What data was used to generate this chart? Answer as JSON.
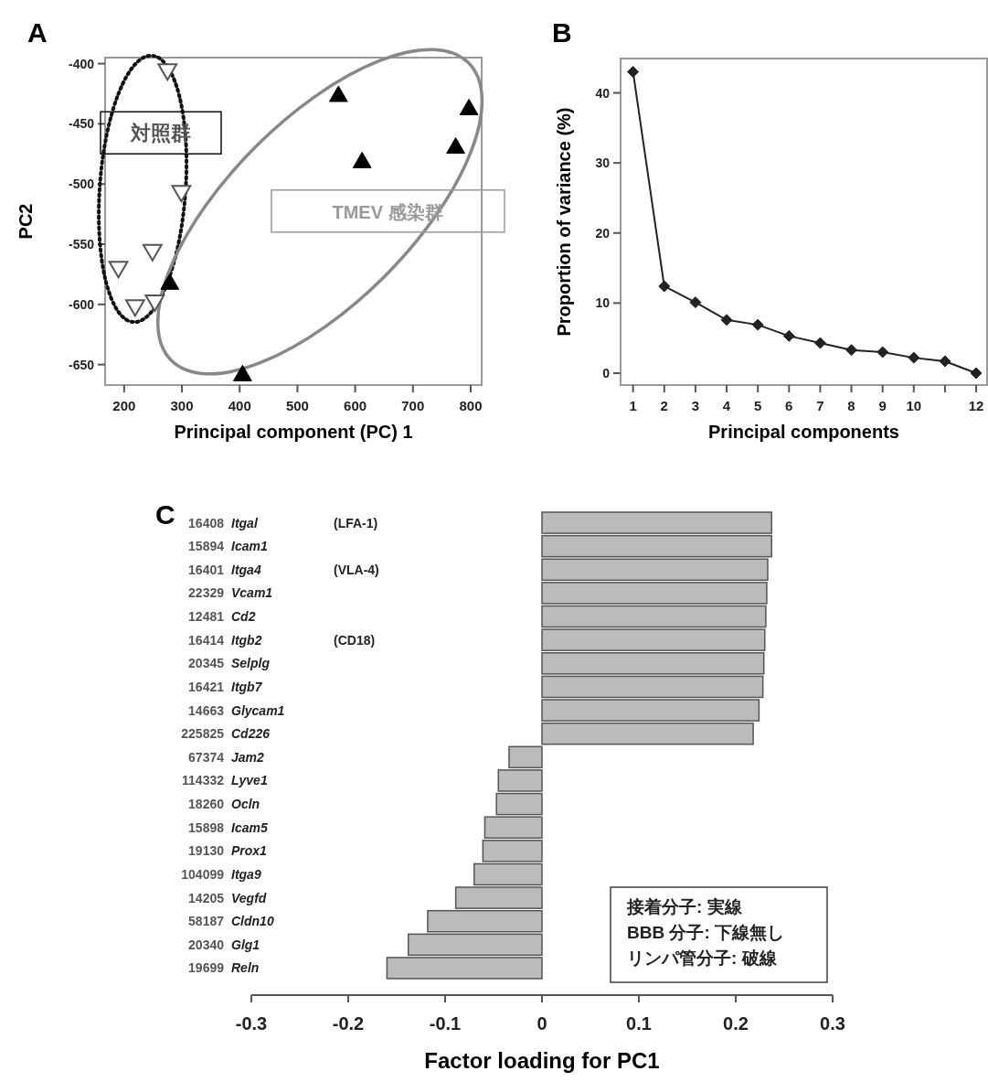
{
  "chart_data": [
    {
      "type": "scatter",
      "title": "A",
      "xlabel": "Principal component (PC) 1",
      "ylabel": "PC2",
      "xlim": [
        167,
        819
      ],
      "ylim": [
        -667,
        -395
      ],
      "xticks": [
        200,
        300,
        400,
        500,
        600,
        700,
        800
      ],
      "yticks": [
        -400,
        -450,
        -500,
        -550,
        -600,
        -650
      ],
      "series": [
        {
          "name": "対照群",
          "color": "#555555",
          "marker": "triangle-down",
          "x": [
            275,
            299,
            249,
            190,
            219,
            253
          ],
          "values": [
            -407,
            -508,
            -557,
            -571,
            -603,
            -599
          ]
        },
        {
          "name": "TMEV 感染群",
          "color": "#000000",
          "marker": "triangle",
          "x": [
            571,
            797,
            774,
            612,
            279,
            405
          ],
          "values": [
            -425,
            -436,
            -468,
            -480,
            -581,
            -657
          ]
        }
      ]
    },
    {
      "type": "line",
      "title": "B",
      "xlabel": "Principal components",
      "ylabel": "Proportion of variance (%)",
      "xlim": [
        0.6,
        12.35
      ],
      "ylim": [
        -1.7,
        44.9
      ],
      "xticks": [
        1,
        2,
        3,
        4,
        5,
        6,
        7,
        8,
        9,
        10,
        {
          "value": 11,
          "label": null
        },
        12
      ],
      "yticks": [
        0,
        10,
        20,
        30,
        40
      ],
      "marker": "diamond",
      "line_style": "solid",
      "series": [
        {
          "color": "#222222",
          "x": [
            1,
            2,
            3,
            4,
            5,
            6,
            7,
            8,
            9,
            10,
            11,
            12
          ],
          "values": [
            43.0,
            12.4,
            10.1,
            7.6,
            6.9,
            5.3,
            4.3,
            3.3,
            3.0,
            2.2,
            1.7,
            0
          ]
        }
      ]
    },
    {
      "type": "bar",
      "orientation": "horizontal",
      "title": "C",
      "xlabel": "Factor loading for PC1",
      "xlim": [
        -0.3,
        0.3
      ],
      "xticks": [
        -0.3,
        -0.2,
        -0.1,
        0.0,
        0.1,
        0.2,
        0.3
      ],
      "categories": [
        "16408 Itgal (LFA-1)",
        "15894 Icam1",
        "16401 Itga4 (VLA-4)",
        "22329 Vcam1",
        "12481 Cd2",
        "16414 Itgb2 (CD18)",
        "20345 Selplg",
        "16421 Itgb7",
        "14663 Glycam1",
        "225825 Cd226",
        "67374 Jam2",
        "114332 Lyve1",
        "18260 Ocln",
        "15898 Icam5",
        "19130 Prox1",
        "104099 Itga9",
        "14205 Vegfd",
        "58187 Cldn10",
        "20340 Glg1",
        "19699 Reln"
      ],
      "color": "#bbbbbb",
      "values": [
        0.237,
        0.237,
        0.233,
        0.232,
        0.231,
        0.23,
        0.229,
        0.228,
        0.224,
        0.218,
        -0.034,
        -0.045,
        -0.047,
        -0.059,
        -0.061,
        -0.07,
        -0.089,
        -0.118,
        -0.138,
        -0.16
      ],
      "annotations": [
        "接着分子: 実線",
        "BBB 分子: 下線無し",
        "リンパ管分子: 破線"
      ]
    }
  ]
}
